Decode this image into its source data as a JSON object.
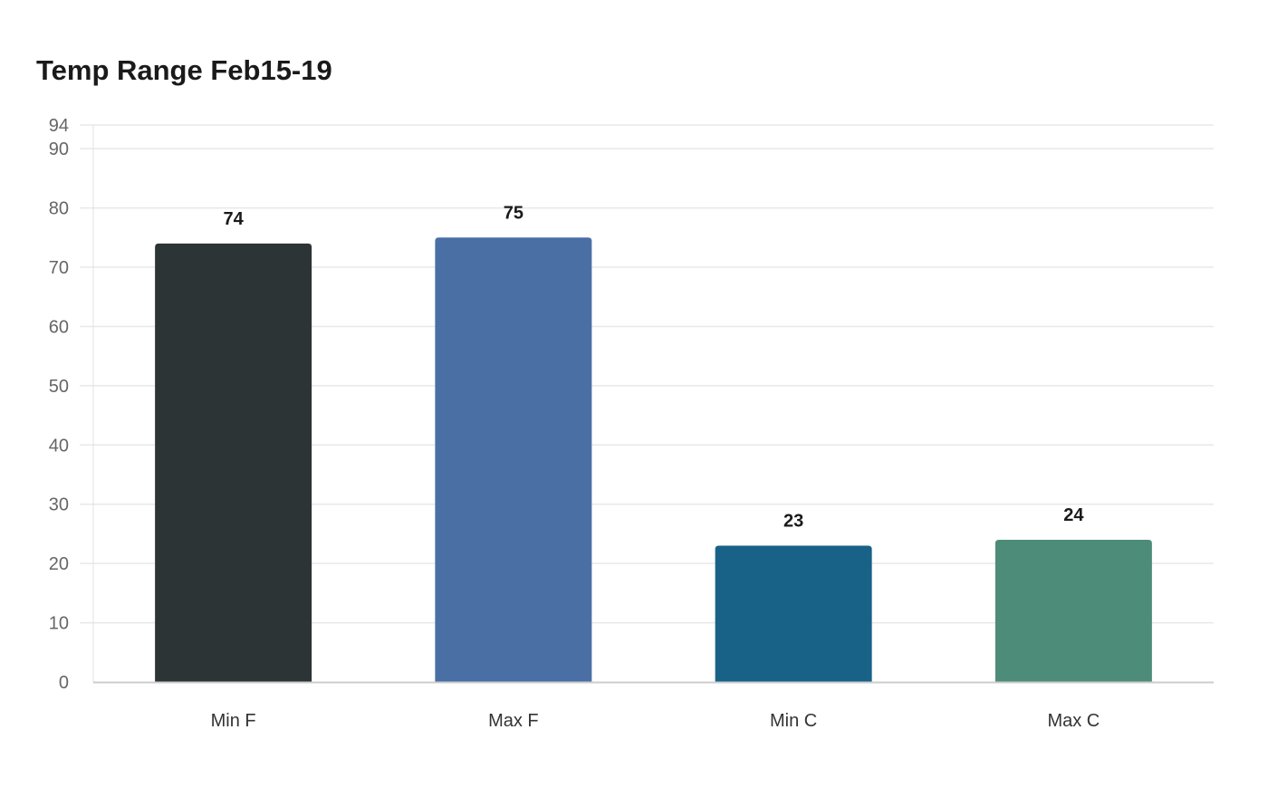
{
  "chart_data": {
    "type": "bar",
    "title": "Temp Range Feb15-19",
    "categories": [
      "Min F",
      "Max F",
      "Min C",
      "Max C"
    ],
    "values": [
      74,
      75,
      23,
      24
    ],
    "colors": [
      "#2d3436",
      "#4a6fa5",
      "#186187",
      "#4e8c7a"
    ],
    "ylim": [
      0,
      94
    ],
    "yticks": [
      0,
      10,
      20,
      30,
      40,
      50,
      60,
      70,
      80,
      90,
      94
    ],
    "grid": true,
    "data_labels": true,
    "xlabel": "",
    "ylabel": ""
  }
}
